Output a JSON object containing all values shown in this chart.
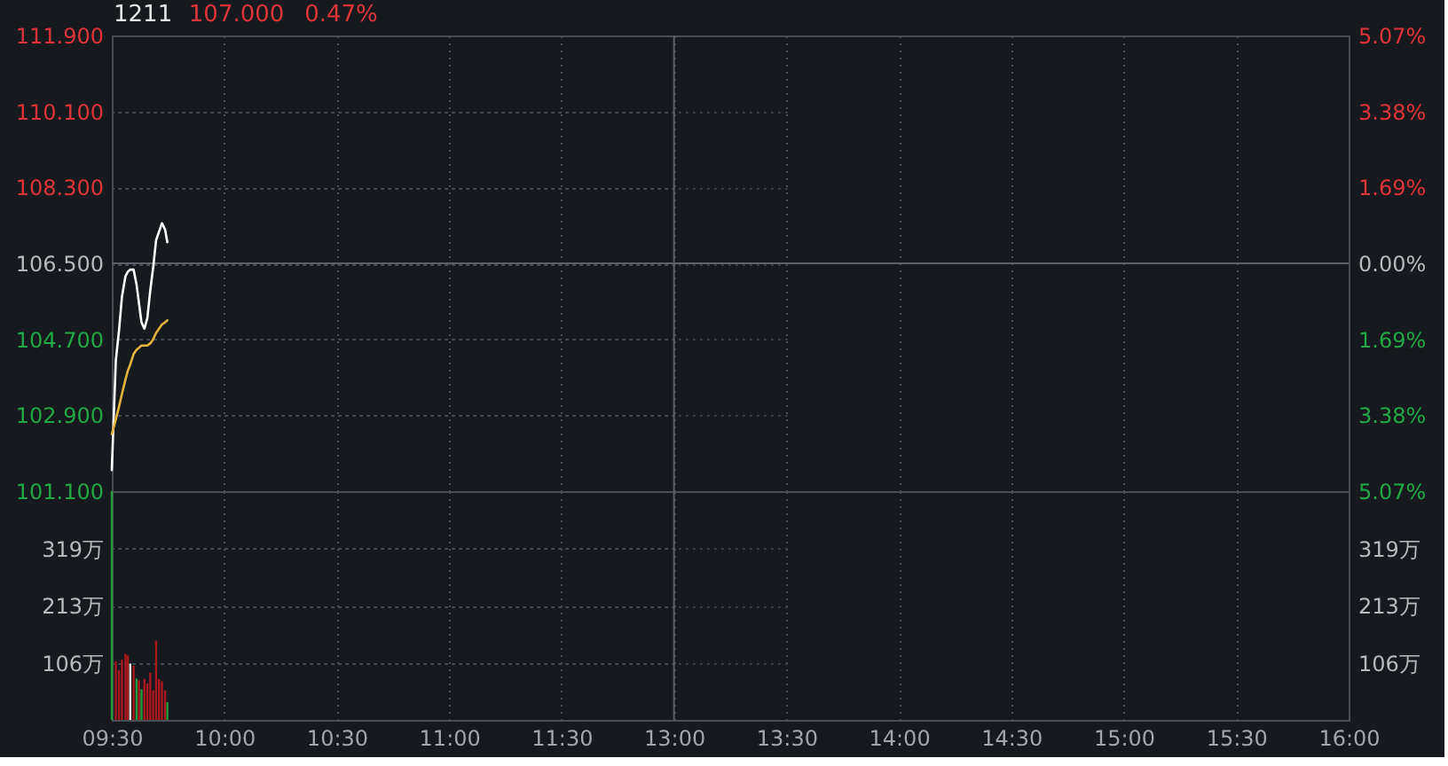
{
  "chart_data": [
    {
      "type": "line",
      "title": "1211",
      "annotations": [
        "107.000",
        "0.47%"
      ],
      "x": [
        9.5,
        9.518,
        9.532,
        9.545,
        9.561,
        9.571,
        9.582,
        9.597,
        9.61,
        9.621,
        9.632,
        9.645,
        9.658,
        9.671,
        9.684,
        9.697,
        9.71,
        9.723,
        9.737,
        9.747
      ],
      "series": [
        {
          "color": "#ffffff",
          "values": [
            101.6,
            104.2,
            104.9,
            105.7,
            106.2,
            106.3,
            106.35,
            106.35,
            106.0,
            105.55,
            105.1,
            104.95,
            105.2,
            105.85,
            106.4,
            107.05,
            107.25,
            107.45,
            107.3,
            107.0
          ]
        },
        {
          "color": "#e3b33c",
          "values": [
            102.45,
            102.8,
            103.1,
            103.4,
            103.75,
            103.95,
            104.1,
            104.35,
            104.45,
            104.5,
            104.55,
            104.55,
            104.55,
            104.6,
            104.7,
            104.85,
            104.95,
            105.05,
            105.1,
            105.15
          ]
        }
      ],
      "xlim": [
        9.5,
        12
      ],
      "xticks": [
        {
          "value": 9.5,
          "label": null
        },
        {
          "value": 10,
          "label": null
        },
        {
          "value": 10.5,
          "label": null
        },
        {
          "value": 11,
          "label": null
        },
        {
          "value": 11.5,
          "label": null
        }
      ],
      "ylim": [
        101.1,
        111.9
      ],
      "yticks": [
        {
          "value": 101.1,
          "label": "101.100"
        },
        {
          "value": 102.9,
          "label": "102.900"
        },
        {
          "value": 104.7,
          "label": "104.700"
        },
        {
          "value": 106.5,
          "label": "106.500"
        },
        {
          "value": 108.3,
          "label": "108.300"
        },
        {
          "value": 110.1,
          "label": "110.100"
        },
        {
          "value": 111.9,
          "label": "111.900"
        }
      ],
      "ref_lines": [
        {
          "axis": "y",
          "value": 106.5,
          "color": "#5c6068"
        },
        {
          "axis": "x",
          "value": 12,
          "color": "#5c6068"
        }
      ],
      "grid": true,
      "tick_labels": "y"
    },
    {
      "type": "line",
      "xlim": [
        13,
        16
      ],
      "xticks": [
        {
          "value": 13,
          "label": null
        },
        {
          "value": 13.5,
          "label": null
        },
        {
          "value": 14,
          "label": null
        },
        {
          "value": 14.5,
          "label": null
        },
        {
          "value": 15,
          "label": null
        },
        {
          "value": 15.5,
          "label": null
        },
        {
          "value": 16,
          "label": null
        }
      ],
      "ylim": [
        -5.07,
        5.07
      ],
      "yticks": [
        {
          "value": -5.07,
          "label": "5.07%"
        },
        {
          "value": -3.38,
          "label": "3.38%"
        },
        {
          "value": -1.69,
          "label": "1.69%"
        },
        {
          "value": 0,
          "label": "0.00%"
        },
        {
          "value": 1.69,
          "label": "1.69%"
        },
        {
          "value": 3.38,
          "label": "3.38%"
        },
        {
          "value": 5.07,
          "label": "5.07%"
        }
      ],
      "ref_lines": [
        {
          "axis": "y",
          "value": 0,
          "color": "#5c6068"
        }
      ],
      "grid": true,
      "tick_labels": "y"
    },
    {
      "type": "bar",
      "x": [
        9.5,
        9.518,
        9.532,
        9.545,
        9.561,
        9.571,
        9.582,
        9.597,
        9.61,
        9.621,
        9.632,
        9.645,
        9.658,
        9.671,
        9.684,
        9.697,
        9.71,
        9.723,
        9.737,
        9.747
      ],
      "values": [
        426,
        109,
        93,
        112,
        123,
        120,
        105,
        101,
        77,
        74,
        57,
        76,
        68,
        88,
        55,
        148,
        76,
        72,
        55,
        33
      ],
      "colors": [
        "#1f9a3c",
        "#a8181c",
        "#a8181c",
        "#a8181c",
        "#a8181c",
        "#a8181c",
        "#e8e8e8",
        "#a8181c",
        "#1f9a3c",
        "#a8181c",
        "#1f9a3c",
        "#a8181c",
        "#a8181c",
        "#a8181c",
        "#a8181c",
        "#a8181c",
        "#a8181c",
        "#a8181c",
        "#a8181c",
        "#1f9a3c"
      ],
      "xlim": [
        9.5,
        12
      ],
      "xticks": [
        {
          "value": 9.5,
          "label": "09:30"
        },
        {
          "value": 10,
          "label": "10:00"
        },
        {
          "value": 10.5,
          "label": "10:30"
        },
        {
          "value": 11,
          "label": "11:00"
        },
        {
          "value": 11.5,
          "label": "11:30"
        }
      ],
      "ylim": [
        0,
        426
      ],
      "yticks": [
        {
          "value": 106.5,
          "label": "106万"
        },
        {
          "value": 213,
          "label": "213万"
        },
        {
          "value": 319.5,
          "label": "319万"
        }
      ],
      "ref_lines": [
        {
          "axis": "x",
          "value": 12,
          "color": "#5c6068"
        }
      ],
      "grid": true
    },
    {
      "type": "line",
      "xlim": [
        13,
        16
      ],
      "xticks": [
        {
          "value": 13,
          "label": "13:00"
        },
        {
          "value": 13.5,
          "label": "13:30"
        },
        {
          "value": 14,
          "label": "14:00"
        },
        {
          "value": 14.5,
          "label": "14:30"
        },
        {
          "value": 15,
          "label": "15:00"
        },
        {
          "value": 15.5,
          "label": "15:30"
        },
        {
          "value": 16,
          "label": "16:00"
        }
      ],
      "ylim": [
        0,
        426
      ],
      "yticks": [
        {
          "value": 106.5,
          "label": "106万"
        },
        {
          "value": 213,
          "label": "213万"
        },
        {
          "value": 319.5,
          "label": "319万"
        }
      ],
      "grid": true
    }
  ]
}
